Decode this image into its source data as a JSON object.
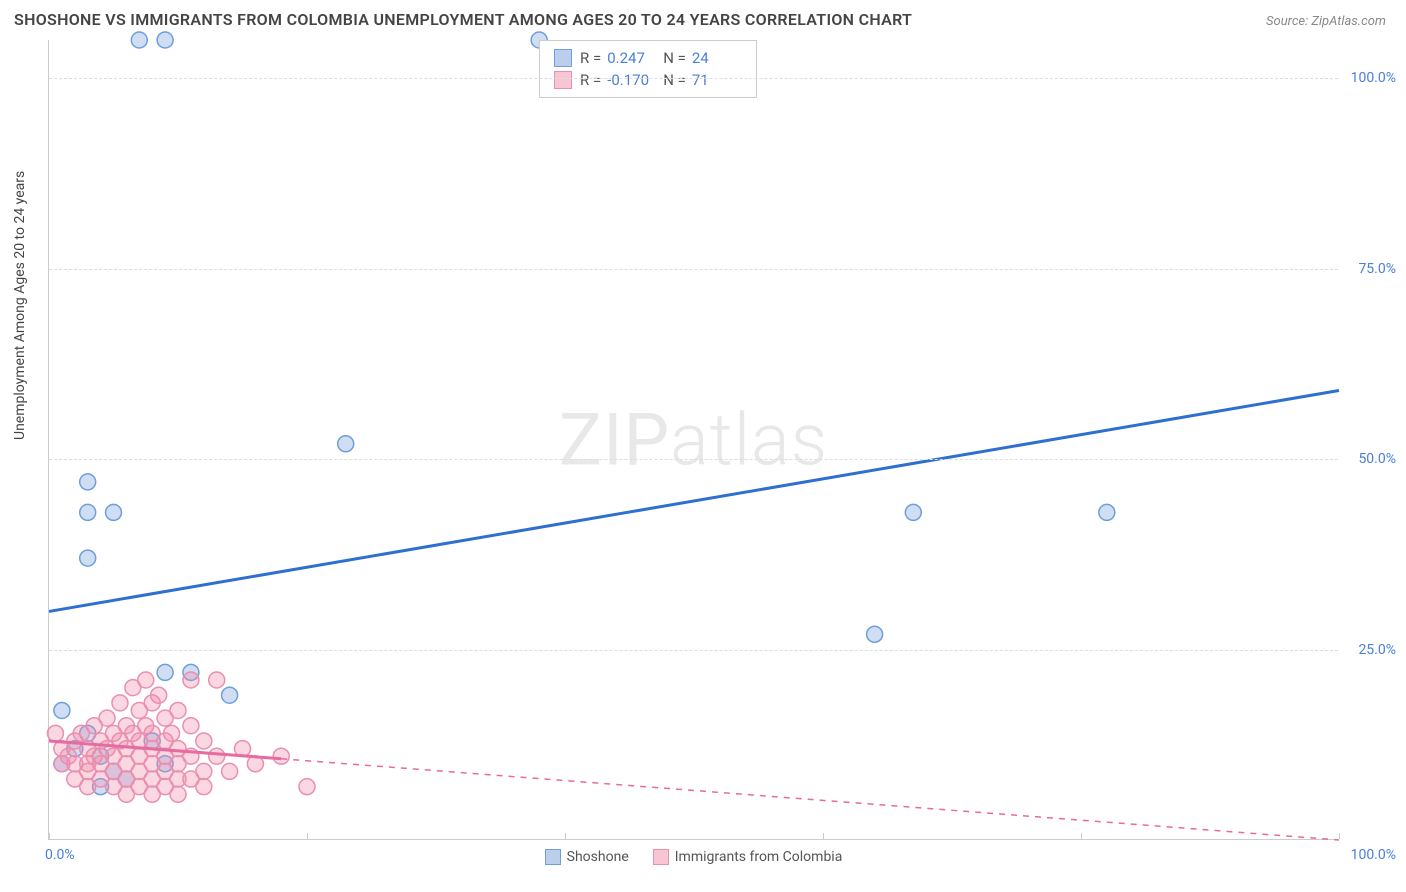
{
  "title": "SHOSHONE VS IMMIGRANTS FROM COLOMBIA UNEMPLOYMENT AMONG AGES 20 TO 24 YEARS CORRELATION CHART",
  "source": "Source: ZipAtlas.com",
  "watermark_a": "ZIP",
  "watermark_b": "atlas",
  "ylabel": "Unemployment Among Ages 20 to 24 years",
  "chart": {
    "type": "scatter",
    "xlim": [
      0,
      100
    ],
    "ylim": [
      0,
      105
    ],
    "xtick_positions": [
      0,
      20,
      40,
      60,
      80,
      100
    ],
    "ytick_positions": [
      25,
      50,
      75,
      100
    ],
    "ytick_labels": [
      "25.0%",
      "50.0%",
      "75.0%",
      "100.0%"
    ],
    "x_min_label": "0.0%",
    "x_max_label": "100.0%",
    "grid_color": "#dddddd",
    "axis_color": "#cccccc",
    "background_color": "#ffffff",
    "tick_label_color": "#4a7fd8",
    "series": [
      {
        "name": "Shoshone",
        "color_fill": "rgba(120,160,220,0.35)",
        "color_stroke": "#6e9edb",
        "trend_color": "#2f6fd0",
        "trend_style": "solid",
        "R": "0.247",
        "N": "24",
        "trend_y_at_x0": 30,
        "trend_y_at_x100": 59,
        "points": [
          [
            7,
            105
          ],
          [
            9,
            105
          ],
          [
            38,
            105
          ],
          [
            3,
            47
          ],
          [
            3,
            43
          ],
          [
            5,
            43
          ],
          [
            3,
            37
          ],
          [
            23,
            52
          ],
          [
            67,
            43
          ],
          [
            82,
            43
          ],
          [
            64,
            27
          ],
          [
            1,
            17
          ],
          [
            9,
            22
          ],
          [
            11,
            22
          ],
          [
            14,
            19
          ],
          [
            2,
            12
          ],
          [
            4,
            11
          ],
          [
            5,
            9
          ],
          [
            6,
            8
          ],
          [
            8,
            13
          ],
          [
            9,
            10
          ],
          [
            1,
            10
          ],
          [
            3,
            14
          ],
          [
            4,
            7
          ]
        ]
      },
      {
        "name": "Immigrants from Colombia",
        "color_fill": "rgba(240,140,170,0.35)",
        "color_stroke": "#e98fb0",
        "trend_color": "#e76aa0",
        "trend_style": "solid-then-dashed",
        "R": "-0.170",
        "N": "71",
        "trend_y_at_x0": 13,
        "trend_y_at_x100": 0,
        "solid_until_x": 18,
        "points": [
          [
            0.5,
            14
          ],
          [
            1,
            12
          ],
          [
            1,
            10
          ],
          [
            1.5,
            11
          ],
          [
            2,
            13
          ],
          [
            2,
            10
          ],
          [
            2,
            8
          ],
          [
            2.5,
            14
          ],
          [
            3,
            12
          ],
          [
            3,
            10
          ],
          [
            3,
            9
          ],
          [
            3,
            7
          ],
          [
            3.5,
            15
          ],
          [
            3.5,
            11
          ],
          [
            4,
            13
          ],
          [
            4,
            10
          ],
          [
            4,
            8
          ],
          [
            4.5,
            16
          ],
          [
            4.5,
            12
          ],
          [
            5,
            14
          ],
          [
            5,
            11
          ],
          [
            5,
            9
          ],
          [
            5,
            7
          ],
          [
            5.5,
            18
          ],
          [
            5.5,
            13
          ],
          [
            6,
            15
          ],
          [
            6,
            12
          ],
          [
            6,
            10
          ],
          [
            6,
            8
          ],
          [
            6,
            6
          ],
          [
            6.5,
            20
          ],
          [
            6.5,
            14
          ],
          [
            7,
            17
          ],
          [
            7,
            13
          ],
          [
            7,
            11
          ],
          [
            7,
            9
          ],
          [
            7,
            7
          ],
          [
            7.5,
            21
          ],
          [
            7.5,
            15
          ],
          [
            8,
            18
          ],
          [
            8,
            14
          ],
          [
            8,
            12
          ],
          [
            8,
            10
          ],
          [
            8,
            8
          ],
          [
            8,
            6
          ],
          [
            8.5,
            19
          ],
          [
            9,
            16
          ],
          [
            9,
            13
          ],
          [
            9,
            11
          ],
          [
            9,
            9
          ],
          [
            9,
            7
          ],
          [
            9.5,
            14
          ],
          [
            10,
            17
          ],
          [
            10,
            12
          ],
          [
            10,
            10
          ],
          [
            10,
            8
          ],
          [
            10,
            6
          ],
          [
            11,
            21
          ],
          [
            11,
            15
          ],
          [
            11,
            11
          ],
          [
            11,
            8
          ],
          [
            12,
            13
          ],
          [
            12,
            9
          ],
          [
            12,
            7
          ],
          [
            13,
            21
          ],
          [
            13,
            11
          ],
          [
            14,
            9
          ],
          [
            15,
            12
          ],
          [
            16,
            10
          ],
          [
            18,
            11
          ],
          [
            20,
            7
          ]
        ]
      }
    ]
  },
  "legend_box": {
    "rows": [
      {
        "swatch_fill": "rgba(120,160,220,0.5)",
        "swatch_stroke": "#6e9edb",
        "R_label": "R =",
        "R": "0.247",
        "N_label": "N =",
        "N": "24"
      },
      {
        "swatch_fill": "rgba(240,140,170,0.5)",
        "swatch_stroke": "#e98fb0",
        "R_label": "R =",
        "R": "-0.170",
        "N_label": "N =",
        "N": "71"
      }
    ]
  },
  "bottom_legend": [
    {
      "fill": "rgba(120,160,220,0.5)",
      "stroke": "#6e9edb",
      "label": "Shoshone"
    },
    {
      "fill": "rgba(240,140,170,0.5)",
      "stroke": "#e98fb0",
      "label": "Immigrants from Colombia"
    }
  ]
}
